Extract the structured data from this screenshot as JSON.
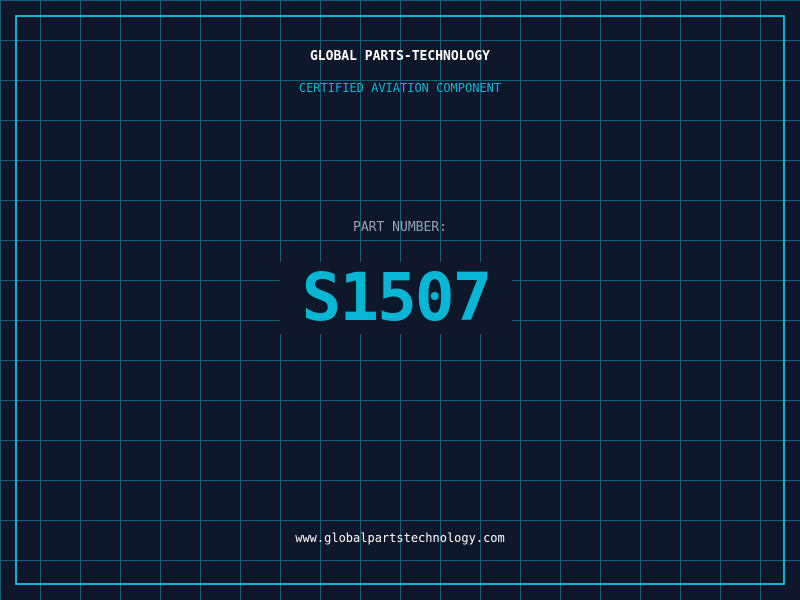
{
  "header": {
    "title": "GLOBAL PARTS-TECHNOLOGY",
    "subtitle": "CERTIFIED AVIATION COMPONENT"
  },
  "main": {
    "label": "PART NUMBER:",
    "part_number": "S1507"
  },
  "footer": {
    "url": "www.globalpartstechnology.com"
  },
  "colors": {
    "background": "#0f172a",
    "grid": "#155e75",
    "accent": "#06b6d4"
  }
}
